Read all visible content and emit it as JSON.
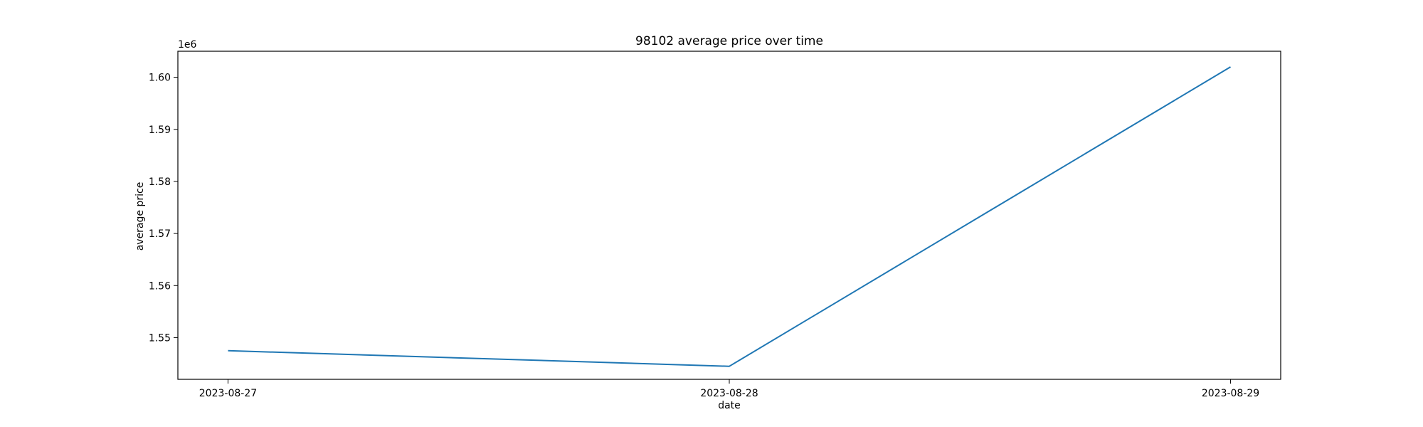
{
  "chart_data": {
    "type": "line",
    "title": "98102 average price over time",
    "xlabel": "date",
    "ylabel": "average price",
    "y_offset_label": "1e6",
    "x": [
      "2023-08-27",
      "2023-08-28",
      "2023-08-29"
    ],
    "series": [
      {
        "name": "average price",
        "values": [
          1547500,
          1544500,
          1602000
        ]
      }
    ],
    "ylim": [
      1542000,
      1605000
    ],
    "y_ticks": [
      1550000,
      1560000,
      1570000,
      1580000,
      1590000,
      1600000
    ],
    "y_tick_labels": [
      "1.55",
      "1.56",
      "1.57",
      "1.58",
      "1.59",
      "1.60"
    ],
    "grid": false,
    "line_color": "#1f77b4"
  }
}
